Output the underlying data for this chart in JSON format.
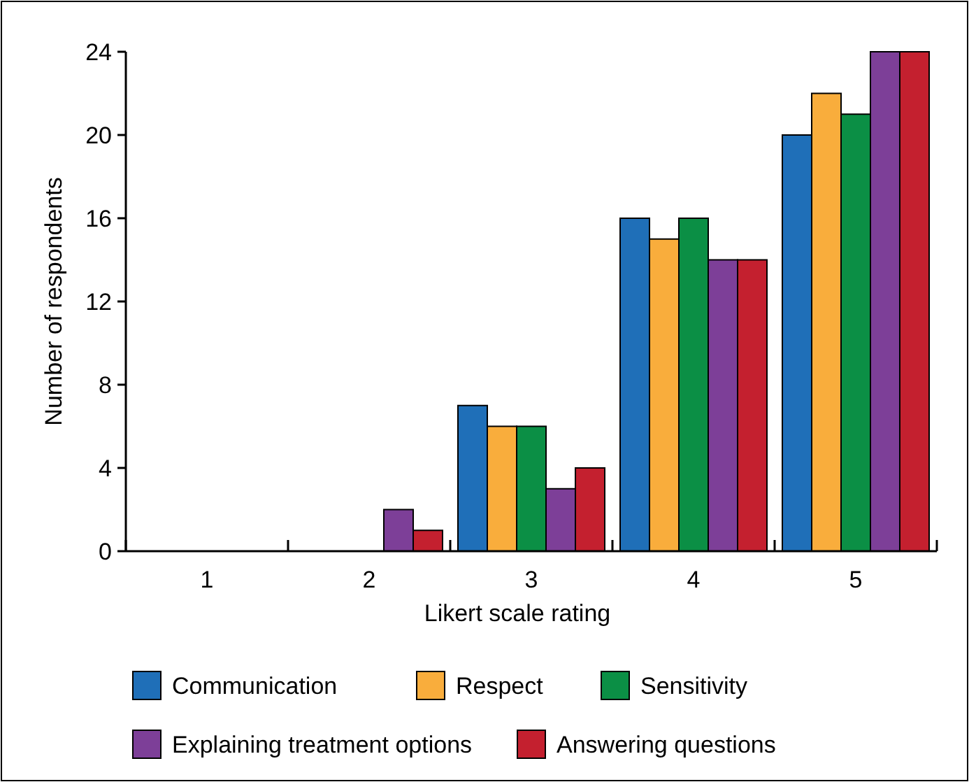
{
  "chart_data": {
    "type": "bar",
    "xlabel": "Likert scale rating",
    "ylabel": "Number of respondents",
    "categories": [
      "1",
      "2",
      "3",
      "4",
      "5"
    ],
    "series": [
      {
        "name": "Communication",
        "color": "#1f6fb8",
        "values": [
          0,
          0,
          7,
          16,
          20
        ]
      },
      {
        "name": "Respect",
        "color": "#f9ad3c",
        "values": [
          0,
          0,
          6,
          15,
          22
        ]
      },
      {
        "name": "Sensitivity",
        "color": "#0b8f45",
        "values": [
          0,
          0,
          6,
          16,
          21
        ]
      },
      {
        "name": "Explaining treatment options",
        "color": "#7d3f98",
        "values": [
          0,
          2,
          3,
          14,
          24
        ]
      },
      {
        "name": "Answering questions",
        "color": "#c4202f",
        "values": [
          0,
          1,
          4,
          14,
          24
        ]
      }
    ],
    "ylim": [
      0,
      24
    ],
    "yticks": [
      0,
      4,
      8,
      12,
      16,
      20,
      24
    ],
    "grid": false,
    "legend": "bottom"
  }
}
